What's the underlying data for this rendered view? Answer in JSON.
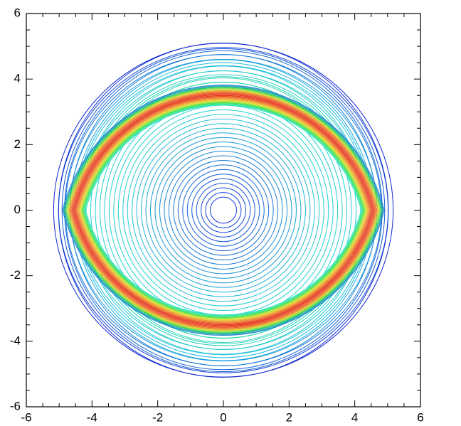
{
  "chart_data": {
    "type": "contour",
    "xlim": [
      -6,
      6
    ],
    "ylim": [
      -6,
      6
    ],
    "xticks": [
      -6,
      -4,
      -2,
      0,
      2,
      4,
      6
    ],
    "yticks": [
      -6,
      -4,
      -2,
      0,
      2,
      4,
      6
    ]
  }
}
